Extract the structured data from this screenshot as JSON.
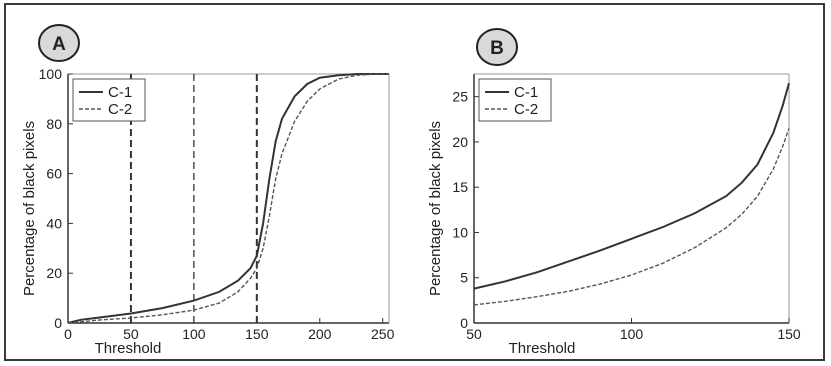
{
  "chart_data": [
    {
      "panel": "A",
      "type": "line",
      "xlabel": "Threshold",
      "ylabel": "Percentage of black pixels",
      "xlim": [
        0,
        255
      ],
      "ylim": [
        0,
        100
      ],
      "xticks": [
        0,
        50,
        100,
        150,
        200,
        250
      ],
      "yticks": [
        0,
        20,
        40,
        60,
        80,
        100
      ],
      "legend": "top-left",
      "grid": false,
      "vlines": [
        50,
        100,
        150
      ],
      "series": [
        {
          "name": "C-1",
          "style": "solid",
          "x": [
            0,
            10,
            25,
            50,
            75,
            100,
            120,
            135,
            145,
            150,
            155,
            160,
            165,
            170,
            180,
            190,
            200,
            215,
            230,
            245,
            255
          ],
          "y": [
            0,
            1.3,
            2.2,
            3.8,
            6,
            9,
            12.5,
            17,
            22,
            27,
            40,
            58,
            73,
            82,
            91,
            96,
            98.5,
            99.5,
            100,
            100,
            100
          ]
        },
        {
          "name": "C-2",
          "style": "dashed",
          "x": [
            0,
            10,
            25,
            50,
            75,
            100,
            120,
            135,
            145,
            150,
            155,
            160,
            165,
            170,
            180,
            190,
            200,
            215,
            230,
            245,
            255
          ],
          "y": [
            0,
            0.5,
            1.2,
            2,
            3.3,
            5.2,
            8,
            12.5,
            18,
            22,
            30,
            43,
            58,
            68,
            81,
            89,
            94,
            98,
            99.5,
            100,
            100
          ]
        }
      ]
    },
    {
      "panel": "B",
      "type": "line",
      "xlabel": "Threshold",
      "ylabel": "Percentage of black pixels",
      "xlim": [
        50,
        150
      ],
      "ylim": [
        0,
        27.5
      ],
      "xticks": [
        50,
        100,
        150
      ],
      "yticks": [
        0,
        5,
        10,
        15,
        20,
        25
      ],
      "legend": "top-left",
      "grid": false,
      "series": [
        {
          "name": "C-1",
          "style": "solid",
          "x": [
            50,
            60,
            70,
            80,
            90,
            100,
            110,
            120,
            130,
            135,
            140,
            145,
            148,
            150
          ],
          "y": [
            3.8,
            4.6,
            5.6,
            6.8,
            8,
            9.3,
            10.6,
            12.1,
            14,
            15.5,
            17.5,
            21,
            24,
            26.5
          ]
        },
        {
          "name": "C-2",
          "style": "dashed",
          "x": [
            50,
            60,
            70,
            80,
            90,
            100,
            110,
            120,
            130,
            135,
            140,
            145,
            148,
            150
          ],
          "y": [
            2,
            2.4,
            2.9,
            3.5,
            4.3,
            5.3,
            6.6,
            8.3,
            10.5,
            12,
            14,
            17,
            19.5,
            21.5
          ]
        }
      ]
    }
  ]
}
